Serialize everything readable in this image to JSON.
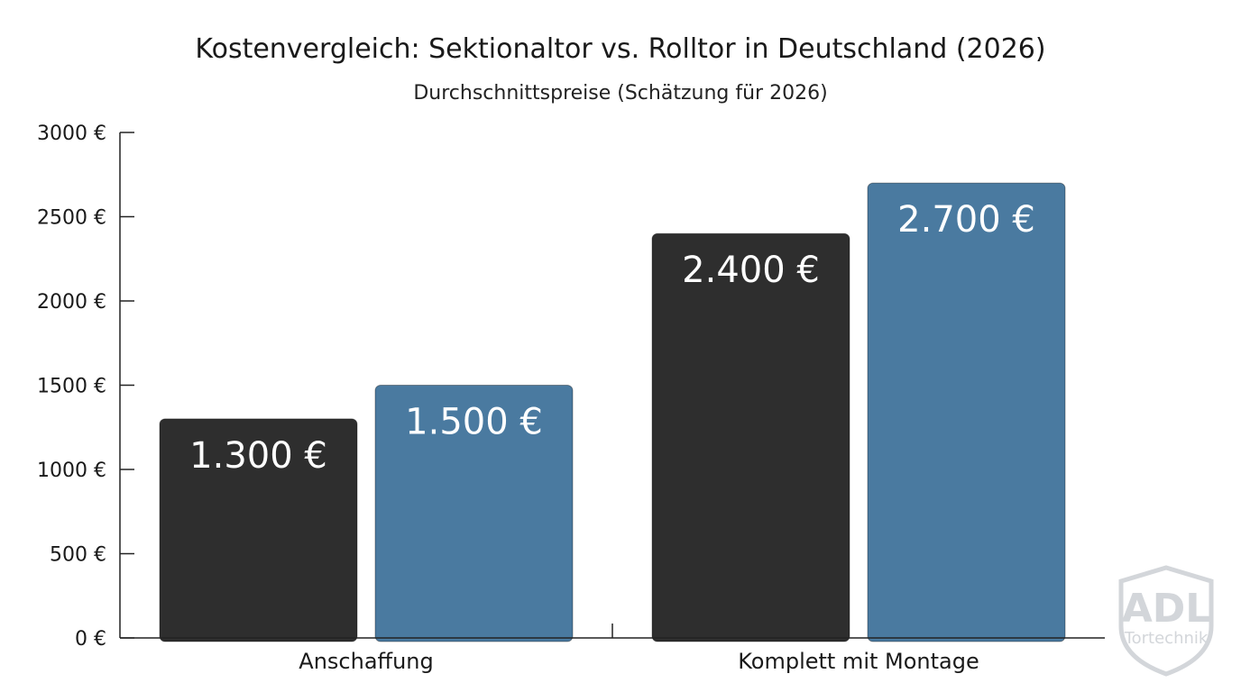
{
  "chart_data": {
    "type": "bar",
    "title": "Kostenvergleich: Sektionaltor vs. Rolltor in Deutschland (2026)",
    "subtitle": "Durchschnittspreise (Schätzung für 2026)",
    "xlabel": "",
    "ylabel": "",
    "categories": [
      "Anschaffung",
      "Komplett mit Montage"
    ],
    "series": [
      {
        "color": "#2e2e2e",
        "values": [
          1300,
          2400
        ],
        "labels": [
          "1.300 €",
          "2.400 €"
        ]
      },
      {
        "color": "#4a7aa0",
        "values": [
          1500,
          2700
        ],
        "labels": [
          "1.500 €",
          "2.700 €"
        ]
      }
    ],
    "ylim": [
      0,
      3000
    ],
    "yticks": [
      0,
      500,
      1000,
      1500,
      2000,
      2500,
      3000
    ],
    "ytick_labels": [
      "0 €",
      "500 €",
      "1000 €",
      "1500 €",
      "2000 €",
      "2500 €",
      "3000 €"
    ],
    "grid": false,
    "legend": "none"
  },
  "watermark": {
    "logo_text": "ADL",
    "tagline": "Tortechnik",
    "icon": "shield-icon"
  }
}
